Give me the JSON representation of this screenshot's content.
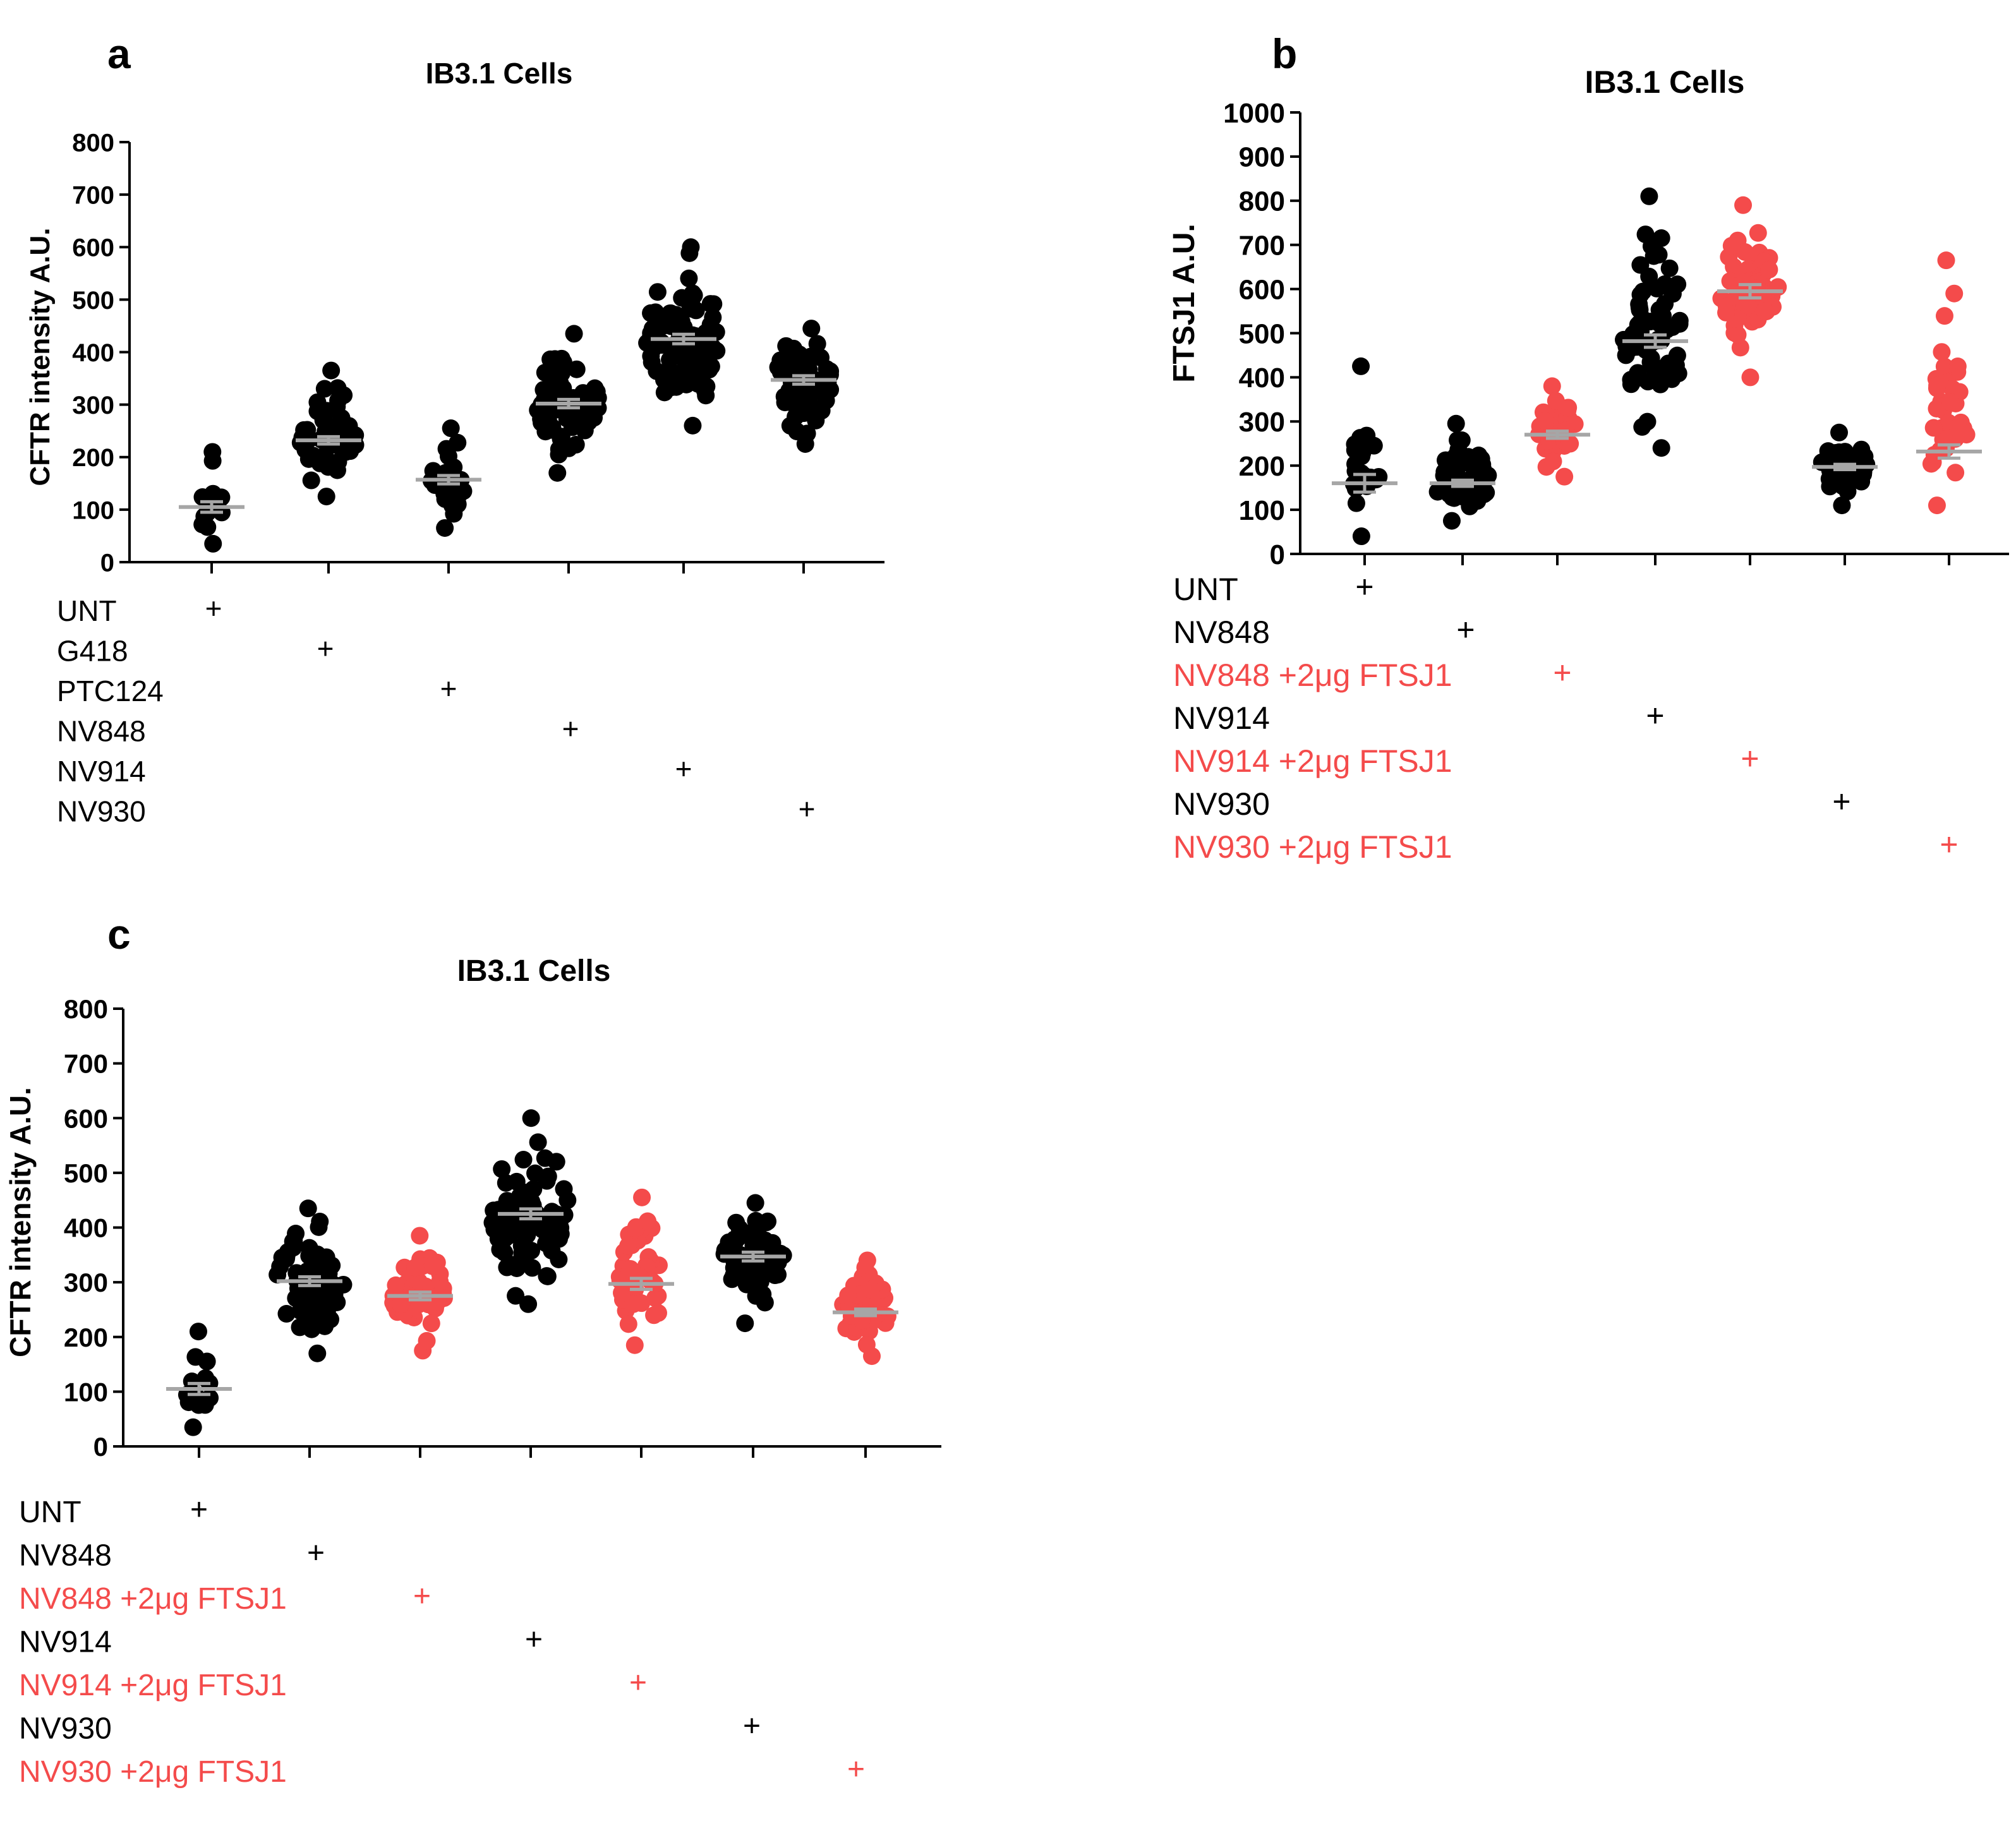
{
  "figure": {
    "colors": {
      "black": "#000000",
      "red": "#f44b4b",
      "mean_line": "#a6a6a6"
    }
  },
  "chart_data": [
    {
      "panel": "a",
      "type": "scatter",
      "title": "IB3.1 Cells",
      "ylabel": "CFTR intensity A.U.",
      "xlabel": "",
      "ylim": [
        0,
        800
      ],
      "yticks": [
        0,
        100,
        200,
        300,
        400,
        500,
        600,
        700,
        800
      ],
      "groups": [
        {
          "name": "UNT",
          "color": "black",
          "n": 14,
          "min": 35,
          "max": 210,
          "mean": 105,
          "sem": 10
        },
        {
          "name": "G418",
          "color": "black",
          "n": 60,
          "min": 125,
          "max": 365,
          "mean": 232,
          "sem": 7
        },
        {
          "name": "PTC124",
          "color": "black",
          "n": 28,
          "min": 65,
          "max": 255,
          "mean": 157,
          "sem": 8
        },
        {
          "name": "NV848",
          "color": "black",
          "n": 70,
          "min": 170,
          "max": 435,
          "mean": 302,
          "sem": 8
        },
        {
          "name": "NV914",
          "color": "black",
          "n": 90,
          "min": 260,
          "max": 600,
          "mean": 425,
          "sem": 9
        },
        {
          "name": "NV930",
          "color": "black",
          "n": 60,
          "min": 225,
          "max": 445,
          "mean": 347,
          "sem": 8
        }
      ],
      "treatment_rows": [
        {
          "label": "UNT",
          "color": "black",
          "mark": "+"
        },
        {
          "label": "G418",
          "color": "black",
          "mark": "+"
        },
        {
          "label": "PTC124",
          "color": "black",
          "mark": "+"
        },
        {
          "label": "NV848",
          "color": "black",
          "mark": "+"
        },
        {
          "label": "NV914",
          "color": "black",
          "mark": "+"
        },
        {
          "label": "NV930",
          "color": "black",
          "mark": "+"
        }
      ]
    },
    {
      "panel": "b",
      "type": "scatter",
      "title": "IB3.1 Cells",
      "ylabel": "FTSJ1 A.U.",
      "xlabel": "",
      "ylim": [
        0,
        1000
      ],
      "yticks": [
        0,
        100,
        200,
        300,
        400,
        500,
        600,
        700,
        800,
        900,
        1000
      ],
      "groups": [
        {
          "name": "UNT",
          "color": "black",
          "n": 22,
          "min": 40,
          "max": 425,
          "mean": 160,
          "sem": 20
        },
        {
          "name": "NV848",
          "color": "black",
          "n": 60,
          "min": 75,
          "max": 295,
          "mean": 160,
          "sem": 7
        },
        {
          "name": "NV848 +2μg FTSJ1",
          "color": "red",
          "n": 40,
          "min": 175,
          "max": 380,
          "mean": 270,
          "sem": 8
        },
        {
          "name": "NV914",
          "color": "black",
          "n": 70,
          "min": 240,
          "max": 810,
          "mean": 482,
          "sem": 14
        },
        {
          "name": "NV914 +2μg FTSJ1",
          "color": "red",
          "n": 65,
          "min": 400,
          "max": 790,
          "mean": 595,
          "sem": 15
        },
        {
          "name": "NV930",
          "color": "black",
          "n": 50,
          "min": 110,
          "max": 275,
          "mean": 197,
          "sem": 6
        },
        {
          "name": "NV930 +2μg FTSJ1",
          "color": "red",
          "n": 40,
          "min": 110,
          "max": 665,
          "mean": 232,
          "sem": 15
        }
      ],
      "treatment_rows": [
        {
          "label": "UNT",
          "color": "black",
          "mark": "+"
        },
        {
          "label": "NV848",
          "color": "black",
          "mark": "+"
        },
        {
          "label": "NV848 +2μg FTSJ1",
          "color": "red",
          "mark": "+"
        },
        {
          "label": "NV914",
          "color": "black",
          "mark": "+"
        },
        {
          "label": "NV914 +2μg FTSJ1",
          "color": "red",
          "mark": "+"
        },
        {
          "label": "NV930",
          "color": "black",
          "mark": "+"
        },
        {
          "label": "NV930 +2μg FTSJ1",
          "color": "red",
          "mark": "+"
        }
      ]
    },
    {
      "panel": "c",
      "type": "scatter",
      "title": "IB3.1 Cells",
      "ylabel": "CFTR intensity A.U.",
      "xlabel": "",
      "ylim": [
        0,
        800
      ],
      "yticks": [
        0,
        100,
        200,
        300,
        400,
        500,
        600,
        700,
        800
      ],
      "groups": [
        {
          "name": "UNT",
          "color": "black",
          "n": 14,
          "min": 35,
          "max": 210,
          "mean": 105,
          "sem": 10
        },
        {
          "name": "NV848",
          "color": "black",
          "n": 70,
          "min": 170,
          "max": 435,
          "mean": 302,
          "sem": 8
        },
        {
          "name": "NV848 +2μg FTSJ1",
          "color": "red",
          "n": 55,
          "min": 175,
          "max": 385,
          "mean": 275,
          "sem": 7
        },
        {
          "name": "NV914",
          "color": "black",
          "n": 90,
          "min": 260,
          "max": 600,
          "mean": 425,
          "sem": 9
        },
        {
          "name": "NV914 +2μg FTSJ1",
          "color": "red",
          "n": 45,
          "min": 185,
          "max": 455,
          "mean": 297,
          "sem": 10
        },
        {
          "name": "NV930",
          "color": "black",
          "n": 60,
          "min": 225,
          "max": 445,
          "mean": 347,
          "sem": 8
        },
        {
          "name": "NV930 +2μg FTSJ1",
          "color": "red",
          "n": 45,
          "min": 165,
          "max": 340,
          "mean": 245,
          "sem": 6
        }
      ],
      "treatment_rows": [
        {
          "label": "UNT",
          "color": "black",
          "mark": "+"
        },
        {
          "label": "NV848",
          "color": "black",
          "mark": "+"
        },
        {
          "label": "NV848 +2μg FTSJ1",
          "color": "red",
          "mark": "+"
        },
        {
          "label": "NV914",
          "color": "black",
          "mark": "+"
        },
        {
          "label": "NV914 +2μg FTSJ1",
          "color": "red",
          "mark": "+"
        },
        {
          "label": "NV930",
          "color": "black",
          "mark": "+"
        },
        {
          "label": "NV930 +2μg FTSJ1",
          "color": "red",
          "mark": "+"
        }
      ]
    }
  ]
}
